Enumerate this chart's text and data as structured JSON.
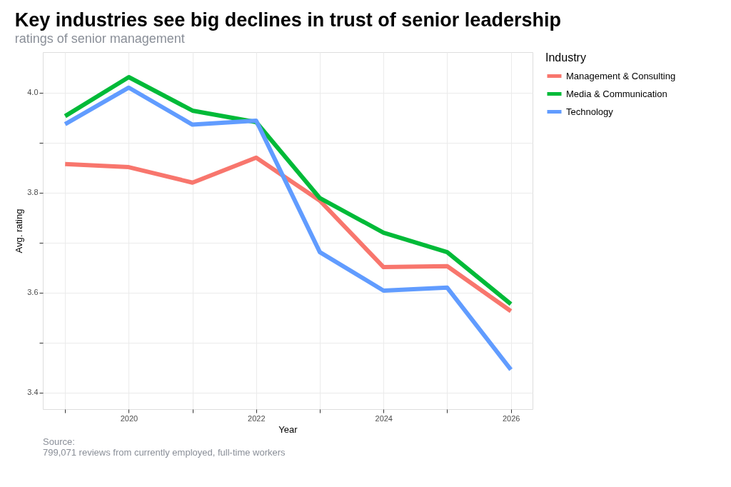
{
  "chart_data": {
    "type": "line",
    "title": "Key industries see big declines in trust of senior leadership",
    "subtitle": "ratings of senior management",
    "xlabel": "Year",
    "ylabel": "Avg. rating",
    "legend_title": "Industry",
    "legend": "right",
    "grid": true,
    "line_style": "solid",
    "marker": "none",
    "x": [
      2019,
      2020,
      2021,
      2022,
      2023,
      2024,
      2025,
      2026
    ],
    "xlim": [
      2018.65,
      2026.34
    ],
    "xticks": [
      {
        "value": 2019,
        "label": null
      },
      2020,
      {
        "value": 2021,
        "label": null
      },
      2022,
      {
        "value": 2023,
        "label": null
      },
      2024,
      {
        "value": 2025,
        "label": null
      },
      2026
    ],
    "ylim": [
      3.367,
      4.081
    ],
    "yticks": [
      3.4,
      {
        "value": 3.5,
        "label": null
      },
      3.6,
      {
        "value": 3.7,
        "label": null
      },
      3.8,
      {
        "value": 3.9,
        "label": null
      },
      {
        "value": 4.0,
        "label": "4.0"
      }
    ],
    "series": [
      {
        "name": "Management & Consulting",
        "color": "#f8766d",
        "values": [
          3.857,
          3.851,
          3.82,
          3.87,
          3.784,
          3.651,
          3.653,
          3.563
        ]
      },
      {
        "name": "Media & Communication",
        "color": "#00ba38",
        "values": [
          3.953,
          4.031,
          3.964,
          3.941,
          3.789,
          3.72,
          3.681,
          3.577
        ]
      },
      {
        "name": "Technology",
        "color": "#619cff",
        "values": [
          3.937,
          4.01,
          3.936,
          3.944,
          3.681,
          3.604,
          3.61,
          3.446
        ]
      }
    ],
    "annotations": [
      "Source:\n799,071 reviews from currently employed, full-time workers"
    ]
  }
}
